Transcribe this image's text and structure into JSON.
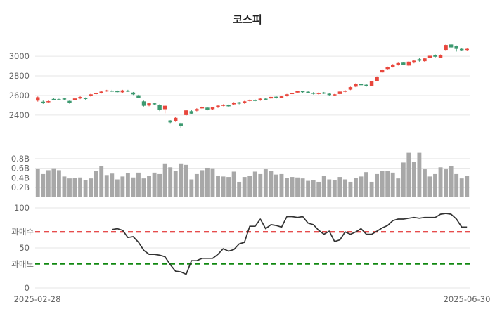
{
  "chart_data": {
    "type": "candlestick",
    "title": "코스피",
    "date_start": "2025-02-28",
    "date_end": "2025-06-30",
    "colors": {
      "up": "#e8473d",
      "down": "#3d9970",
      "volume": "#a8a8a8",
      "line": "#333333",
      "overbought": "#dd1111",
      "oversold": "#118811",
      "grid": "#e6e6e6"
    },
    "price": {
      "ylim": [
        2170,
        3180
      ],
      "ticks": [
        2400,
        2600,
        2800,
        3000
      ],
      "series": [
        [
          2548,
          2582,
          2538,
          2590
        ],
        [
          2537,
          2525,
          2515,
          2548
        ],
        [
          2532,
          2542,
          2528,
          2549
        ],
        [
          2565,
          2558,
          2552,
          2572
        ],
        [
          2562,
          2556,
          2550,
          2568
        ],
        [
          2570,
          2560,
          2553,
          2574
        ],
        [
          2545,
          2522,
          2515,
          2552
        ],
        [
          2555,
          2570,
          2548,
          2575
        ],
        [
          2570,
          2585,
          2563,
          2592
        ],
        [
          2575,
          2565,
          2558,
          2580
        ],
        [
          2595,
          2612,
          2588,
          2618
        ],
        [
          2618,
          2625,
          2610,
          2630
        ],
        [
          2628,
          2640,
          2620,
          2645
        ],
        [
          2645,
          2652,
          2638,
          2658
        ],
        [
          2650,
          2642,
          2635,
          2658
        ],
        [
          2645,
          2638,
          2630,
          2652
        ],
        [
          2633,
          2652,
          2625,
          2658
        ],
        [
          2650,
          2642,
          2636,
          2658
        ],
        [
          2630,
          2612,
          2605,
          2636
        ],
        [
          2603,
          2578,
          2572,
          2608
        ],
        [
          2540,
          2495,
          2488,
          2547
        ],
        [
          2498,
          2520,
          2490,
          2526
        ],
        [
          2520,
          2510,
          2500,
          2528
        ],
        [
          2505,
          2450,
          2440,
          2512
        ],
        [
          2460,
          2495,
          2418,
          2498
        ],
        [
          2345,
          2325,
          2318,
          2348
        ],
        [
          2338,
          2372,
          2330,
          2380
        ],
        [
          2318,
          2290,
          2270,
          2322
        ],
        [
          2400,
          2448,
          2395,
          2452
        ],
        [
          2440,
          2415,
          2408,
          2450
        ],
        [
          2445,
          2462,
          2438,
          2470
        ],
        [
          2468,
          2485,
          2460,
          2490
        ],
        [
          2476,
          2455,
          2448,
          2482
        ],
        [
          2460,
          2478,
          2452,
          2482
        ],
        [
          2478,
          2496,
          2472,
          2500
        ],
        [
          2495,
          2505,
          2490,
          2510
        ],
        [
          2500,
          2490,
          2484,
          2508
        ],
        [
          2510,
          2527,
          2504,
          2532
        ],
        [
          2530,
          2518,
          2510,
          2535
        ],
        [
          2522,
          2540,
          2516,
          2545
        ],
        [
          2545,
          2555,
          2538,
          2560
        ],
        [
          2555,
          2548,
          2540,
          2562
        ],
        [
          2552,
          2568,
          2546,
          2572
        ],
        [
          2568,
          2560,
          2553,
          2574
        ],
        [
          2570,
          2586,
          2564,
          2590
        ],
        [
          2588,
          2575,
          2568,
          2592
        ],
        [
          2578,
          2592,
          2572,
          2596
        ],
        [
          2596,
          2612,
          2590,
          2616
        ],
        [
          2614,
          2625,
          2608,
          2630
        ],
        [
          2630,
          2645,
          2624,
          2650
        ],
        [
          2645,
          2635,
          2628,
          2650
        ],
        [
          2638,
          2630,
          2622,
          2645
        ],
        [
          2628,
          2618,
          2610,
          2634
        ],
        [
          2615,
          2628,
          2608,
          2632
        ],
        [
          2630,
          2622,
          2615,
          2636
        ],
        [
          2618,
          2605,
          2598,
          2624
        ],
        [
          2602,
          2612,
          2595,
          2616
        ],
        [
          2615,
          2640,
          2610,
          2645
        ],
        [
          2638,
          2650,
          2632,
          2655
        ],
        [
          2660,
          2685,
          2655,
          2690
        ],
        [
          2690,
          2720,
          2685,
          2725
        ],
        [
          2718,
          2705,
          2698,
          2724
        ],
        [
          2710,
          2698,
          2690,
          2716
        ],
        [
          2700,
          2745,
          2695,
          2750
        ],
        [
          2750,
          2790,
          2745,
          2795
        ],
        [
          2835,
          2862,
          2830,
          2868
        ],
        [
          2870,
          2890,
          2865,
          2895
        ],
        [
          2890,
          2915,
          2885,
          2920
        ],
        [
          2915,
          2930,
          2905,
          2935
        ],
        [
          2935,
          2915,
          2908,
          2940
        ],
        [
          2905,
          2945,
          2898,
          2950
        ],
        [
          2935,
          2955,
          2928,
          2960
        ],
        [
          2970,
          2955,
          2945,
          2980
        ],
        [
          2950,
          2978,
          2942,
          2985
        ],
        [
          2980,
          3005,
          2975,
          3010
        ],
        [
          3015,
          2995,
          2985,
          3020
        ],
        [
          2985,
          3012,
          2980,
          3018
        ],
        [
          3065,
          3115,
          3060,
          3120
        ],
        [
          3120,
          3090,
          3085,
          3125
        ],
        [
          3105,
          3075,
          3048,
          3110
        ],
        [
          3075,
          3062,
          3052,
          3080
        ],
        [
          3068,
          3075,
          3058,
          3082
        ]
      ]
    },
    "volume": {
      "ylim": [
        0,
        0.9
      ],
      "ticks": [
        0.2,
        0.4,
        0.6,
        0.8
      ],
      "tick_labels": [
        "0.2B",
        "0.4B",
        "0.6B",
        "0.8B"
      ],
      "values": [
        0.59,
        0.48,
        0.56,
        0.6,
        0.56,
        0.43,
        0.39,
        0.4,
        0.41,
        0.36,
        0.39,
        0.54,
        0.65,
        0.46,
        0.49,
        0.37,
        0.43,
        0.5,
        0.41,
        0.51,
        0.39,
        0.44,
        0.51,
        0.48,
        0.7,
        0.62,
        0.55,
        0.7,
        0.67,
        0.37,
        0.48,
        0.56,
        0.61,
        0.6,
        0.45,
        0.43,
        0.42,
        0.53,
        0.32,
        0.42,
        0.44,
        0.53,
        0.48,
        0.58,
        0.55,
        0.47,
        0.48,
        0.4,
        0.42,
        0.41,
        0.39,
        0.34,
        0.35,
        0.32,
        0.45,
        0.37,
        0.36,
        0.42,
        0.37,
        0.32,
        0.4,
        0.43,
        0.52,
        0.32,
        0.48,
        0.55,
        0.54,
        0.51,
        0.39,
        0.72,
        0.92,
        0.74,
        0.92,
        0.58,
        0.43,
        0.48,
        0.62,
        0.58,
        0.64,
        0.48,
        0.39,
        0.44
      ]
    },
    "rsi": {
      "ylim": [
        0,
        100
      ],
      "ticks": [
        0,
        50,
        100
      ],
      "overbought": 70,
      "oversold": 30,
      "overbought_label": "과매수",
      "oversold_label": "과매도",
      "start_index": 14,
      "values": [
        73,
        74,
        72,
        63,
        64,
        57,
        47,
        42,
        42,
        41,
        39,
        29,
        21,
        20,
        17,
        34,
        34,
        37,
        37,
        37,
        42,
        49,
        46,
        48,
        55,
        57,
        77,
        77,
        86,
        74,
        79,
        78,
        76,
        89,
        89,
        88,
        89,
        81,
        79,
        72,
        67,
        71,
        58,
        60,
        70,
        67,
        70,
        74,
        67,
        67,
        71,
        75,
        78,
        84,
        86,
        86,
        87,
        88,
        87,
        88,
        88,
        88,
        92,
        93,
        92,
        86,
        76,
        76
      ]
    }
  }
}
